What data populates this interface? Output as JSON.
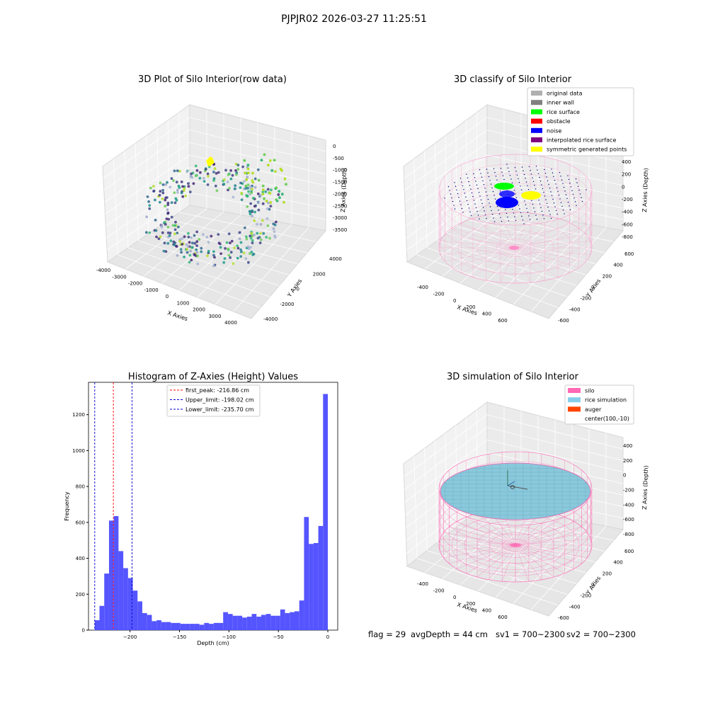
{
  "suptitle": "PJPJR02 2026-03-27 11:25:51",
  "footer": {
    "flag": "flag = 29",
    "avg_depth": "avgDepth = 44 cm",
    "sv1": "sv1 = 700~2300",
    "sv2": "sv2 = 700~2300"
  },
  "chart_data": [
    {
      "type": "scatter",
      "projection": "3d",
      "title": "3D Plot of Silo Interior(row data)",
      "xlabel": "X Axies",
      "ylabel": "Y Axies",
      "zlabel": "Z Axies (Depth)",
      "x_ticks": [
        "-4000",
        "-3000",
        "-2000",
        "-1000",
        "0",
        "1000",
        "2000",
        "3000",
        "4000"
      ],
      "y_ticks": [
        "-4000",
        "-2000",
        "0",
        "2000",
        "4000"
      ],
      "z_ticks": [
        "0",
        "-500",
        "-1000",
        "-1500",
        "-2000",
        "-2500",
        "-3000",
        "-3500"
      ],
      "xlim": [
        -4000,
        4000
      ],
      "ylim": [
        -4000,
        4000
      ],
      "zlim": [
        -3900,
        0
      ],
      "colormap": "viridis (by depth)",
      "highlight_color": "#ffff00",
      "grid": true
    },
    {
      "type": "scatter",
      "projection": "3d",
      "title": "3D classify of Silo Interior",
      "xlabel": "X Axies",
      "ylabel": "Y Axies",
      "zlabel": "Z Axies (Depth)",
      "x_ticks": [
        "-400",
        "-200",
        "0",
        "200",
        "400",
        "600"
      ],
      "y_ticks": [
        "-600",
        "-400",
        "-200",
        "0",
        "200",
        "400",
        "600"
      ],
      "z_ticks": [
        "400",
        "200",
        "0",
        "-200",
        "-400",
        "-600",
        "-800"
      ],
      "legend": [
        {
          "label": "original data",
          "color": "#b0b0b0"
        },
        {
          "label": "inner wall",
          "color": "#808080"
        },
        {
          "label": "rice surface",
          "color": "#00ff00"
        },
        {
          "label": "obstacle",
          "color": "#ff0000"
        },
        {
          "label": "noise",
          "color": "#0000ff"
        },
        {
          "label": "interpolated rice surface",
          "color": "#800080"
        },
        {
          "label": "symmetric generated points",
          "color": "#ffff00"
        }
      ],
      "legend_loc": "upper right",
      "grid": true
    },
    {
      "type": "bar",
      "title": "Histogram of Z-Axies (Height) Values",
      "xlabel": "Depth (cm)",
      "ylabel": "Frequency",
      "x_ticks": [
        -200,
        -150,
        -100,
        -50,
        0
      ],
      "y_ticks": [
        0,
        200,
        400,
        600,
        800,
        1000,
        1200
      ],
      "xlim": [
        -242,
        10
      ],
      "ylim": [
        0,
        1380
      ],
      "bin_range": [
        -235.7,
        0
      ],
      "values": [
        55,
        135,
        315,
        610,
        635,
        440,
        345,
        290,
        220,
        160,
        95,
        85,
        50,
        55,
        45,
        45,
        40,
        40,
        35,
        35,
        35,
        35,
        30,
        40,
        35,
        40,
        40,
        100,
        90,
        80,
        80,
        70,
        75,
        90,
        75,
        85,
        90,
        80,
        80,
        115,
        95,
        100,
        105,
        165,
        630,
        480,
        485,
        580,
        1315
      ],
      "bar_color": "#4c4cff",
      "lines": [
        {
          "label": "first_peak: -216.86 cm",
          "x": -216.86,
          "color": "#ff0000"
        },
        {
          "label": "Upper_limit: -198.02 cm",
          "x": -198.02,
          "color": "#0000cc"
        },
        {
          "label": "Lower_limit: -235.70 cm",
          "x": -235.7,
          "color": "#0000cc"
        }
      ],
      "legend_loc": "upper center",
      "grid": false
    },
    {
      "type": "surface",
      "projection": "3d",
      "title": "3D simulation of Silo Interior",
      "xlabel": "X Axies",
      "ylabel": "Y Axies",
      "zlabel": "Z Axies (Depth)",
      "x_ticks": [
        "-400",
        "-200",
        "0",
        "200",
        "400",
        "600"
      ],
      "y_ticks": [
        "-600",
        "-400",
        "-200",
        "0",
        "200",
        "400",
        "600"
      ],
      "z_ticks": [
        "400",
        "200",
        "0",
        "-200",
        "-400",
        "-600",
        "-800"
      ],
      "legend": [
        {
          "label": "silo",
          "color": "#ff69b4"
        },
        {
          "label": "rice simulation",
          "color": "#87ceeb"
        },
        {
          "label": "auger",
          "color": "#ff4500"
        },
        {
          "label": "center(100,-10)",
          "color": ""
        }
      ],
      "legend_loc": "upper right",
      "grid": true
    }
  ]
}
